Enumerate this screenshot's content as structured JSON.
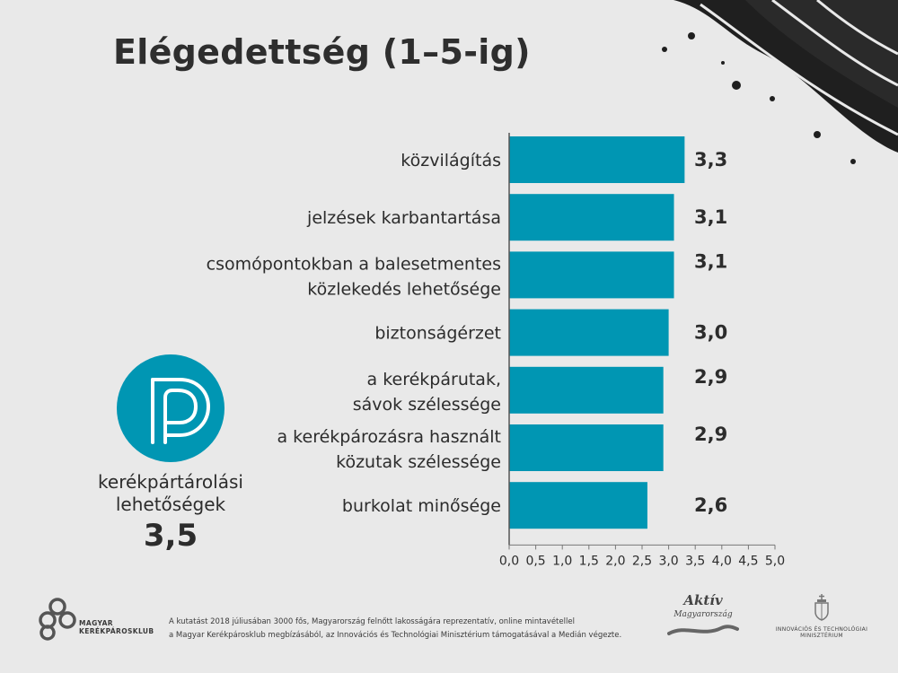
{
  "title": "Elégedettség (1–5-ig)",
  "chart_data": {
    "type": "bar",
    "orientation": "horizontal",
    "categories": [
      "közvilágítás",
      "jelzések karbantartása",
      "csomópontokban a balesetmentes közlekedés lehetősége",
      "biztonságérzet",
      "a kerékpárutak, sávok szélessége",
      "a kerékpározásra használt közutak szélessége",
      "burkolat minősége"
    ],
    "category_lines": [
      [
        "közvilágítás"
      ],
      [
        "jelzések karbantartása"
      ],
      [
        "csomópontokban a balesetmentes",
        "közlekedés lehetősége"
      ],
      [
        "biztonságérzet"
      ],
      [
        "a kerékpárutak,",
        "sávok szélessége"
      ],
      [
        "a kerékpározásra használt",
        "közutak szélessége"
      ],
      [
        "burkolat minősége"
      ]
    ],
    "values": [
      3.3,
      3.1,
      3.1,
      3.0,
      2.9,
      2.9,
      2.6
    ],
    "value_labels": [
      "3,3",
      "3,1",
      "3,1",
      "3,0",
      "2,9",
      "2,9",
      "2,6"
    ],
    "xlim": [
      0,
      5
    ],
    "ticks": [
      "0,0",
      "0,5",
      "1,0",
      "1,5",
      "2,0",
      "2,5",
      "3,0",
      "3,5",
      "4,0",
      "4,5",
      "5,0"
    ],
    "bar_color": "#0096b3",
    "grid": false
  },
  "highlight": {
    "label_lines": [
      "kerékpártárolási",
      "lehetőségek"
    ],
    "value": "3,5",
    "icon": "parking-icon",
    "color": "#0096b3"
  },
  "footer": {
    "org_lines": [
      "MAGYAR",
      "KERÉKPÁROSKLUB"
    ],
    "note_lines": [
      "A kutatást 2018 júliusában 3000 fős, Magyarország felnőtt lakosságára reprezentatív, online mintavétellel",
      "a Magyar Kerékpárosklub megbízásából, az Innovációs és Technológiai Minisztérium támogatásával a Medián végezte."
    ],
    "aktiv_title": "Aktív",
    "aktiv_sub": "Magyarország",
    "ministry_lines": [
      "INNOVÁCIÓS ÉS TECHNOLÓGIAI",
      "MINISZTÉRIUM"
    ]
  }
}
